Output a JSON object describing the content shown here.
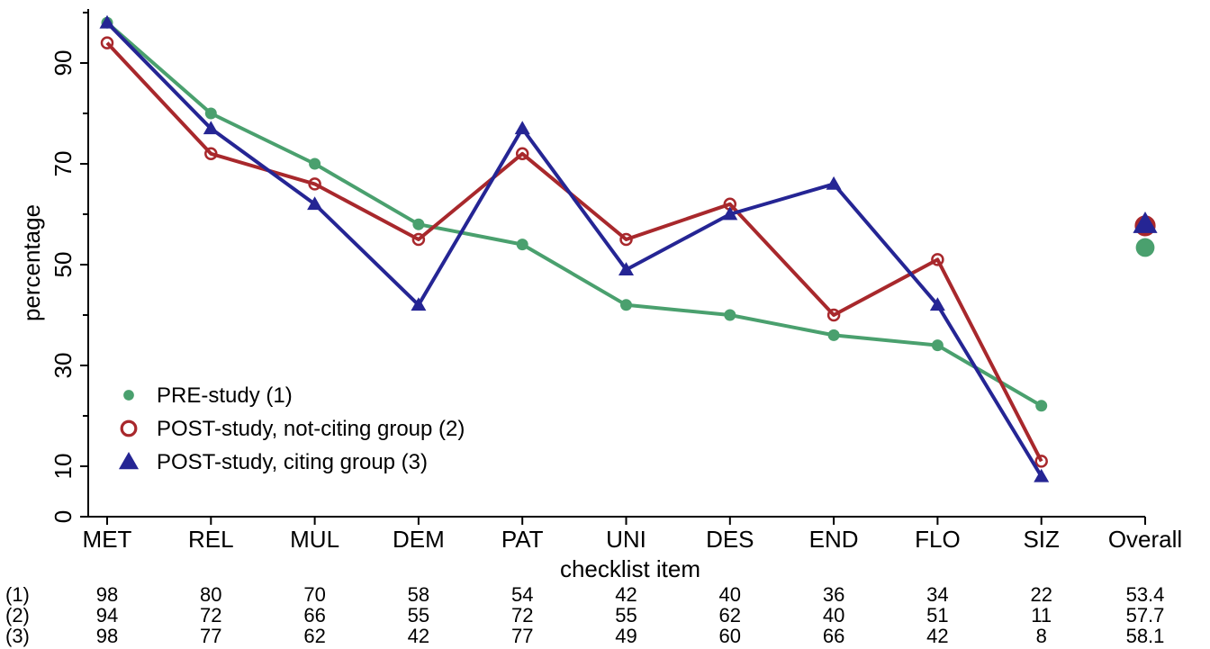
{
  "chart_data": {
    "type": "line",
    "categories": [
      "MET",
      "REL",
      "MUL",
      "DEM",
      "PAT",
      "UNI",
      "DES",
      "END",
      "FLO",
      "SIZ",
      "Overall"
    ],
    "series": [
      {
        "name": "PRE-study (1)",
        "short": "(1)",
        "color": "#4aa06e",
        "marker": "dot",
        "values": [
          98,
          80,
          70,
          58,
          54,
          42,
          40,
          36,
          34,
          22,
          53.4
        ],
        "labels": [
          "98",
          "80",
          "70",
          "58",
          "54",
          "42",
          "40",
          "36",
          "34",
          "22",
          "53.4"
        ]
      },
      {
        "name": "POST-study, not-citing group (2)",
        "short": "(2)",
        "color": "#a8282c",
        "marker": "ring",
        "values": [
          94,
          72,
          66,
          55,
          72,
          55,
          62,
          40,
          51,
          11,
          57.7
        ],
        "labels": [
          "94",
          "72",
          "66",
          "55",
          "72",
          "55",
          "62",
          "40",
          "51",
          "11",
          "57.7"
        ]
      },
      {
        "name": "POST-study, citing group (3)",
        "short": "(3)",
        "color": "#252594",
        "marker": "triangle",
        "values": [
          98,
          77,
          62,
          42,
          77,
          49,
          60,
          66,
          42,
          8,
          58.1
        ],
        "labels": [
          "98",
          "77",
          "62",
          "42",
          "77",
          "49",
          "60",
          "66",
          "42",
          "8",
          "58.1"
        ]
      }
    ],
    "connected_count": 10,
    "xlabel": "checklist item",
    "ylabel": "percentage",
    "ylim": [
      0,
      100
    ],
    "yticks": [
      0,
      10,
      30,
      50,
      70,
      90
    ],
    "ytick_labels": [
      "0",
      "10",
      "30",
      "50",
      "70",
      "90"
    ],
    "yminor": [
      20,
      40,
      60,
      80,
      100
    ],
    "grid": false,
    "legend_position": "bottom-left"
  }
}
